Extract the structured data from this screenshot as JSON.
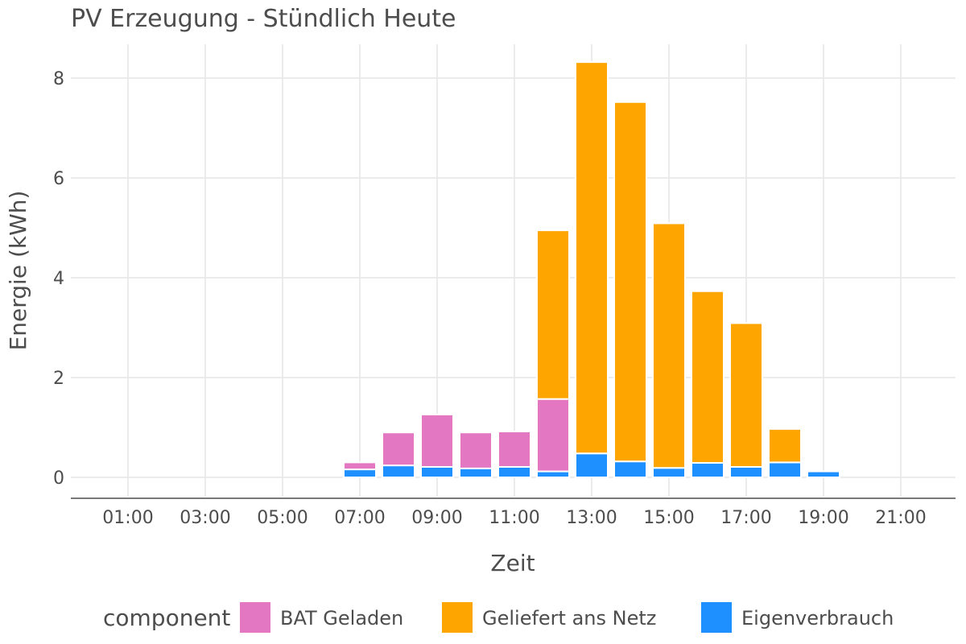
{
  "chart_data": {
    "type": "bar",
    "stacked": true,
    "title": "PV Erzeugung - Stündlich Heute",
    "xlabel": "Zeit",
    "ylabel": "Energie (kWh)",
    "ylim": [
      -0.4,
      8.8
    ],
    "yticks": [
      "0",
      "2",
      "4",
      "6",
      "8"
    ],
    "xticks": [
      "01:00",
      "03:00",
      "05:00",
      "07:00",
      "09:00",
      "11:00",
      "13:00",
      "15:00",
      "17:00",
      "19:00",
      "21:00"
    ],
    "grid": true,
    "legend": {
      "title": "component",
      "placement": "bottom"
    },
    "categories": [
      "00:00",
      "01:00",
      "02:00",
      "03:00",
      "04:00",
      "05:00",
      "06:00",
      "07:00",
      "08:00",
      "09:00",
      "10:00",
      "11:00",
      "12:00",
      "13:00",
      "14:00",
      "15:00",
      "16:00",
      "17:00",
      "18:00",
      "19:00",
      "20:00",
      "21:00",
      "22:00"
    ],
    "series": [
      {
        "name": "Eigenverbrauch",
        "color": "#1e90ff",
        "values": [
          0,
          0,
          0,
          0,
          0,
          0,
          0,
          0.16,
          0.24,
          0.21,
          0.18,
          0.21,
          0.12,
          0.48,
          0.32,
          0.19,
          0.29,
          0.21,
          0.3,
          0.12,
          0,
          0,
          0
        ]
      },
      {
        "name": "BAT Geladen",
        "color": "#e377c2",
        "values": [
          0,
          0,
          0,
          0,
          0,
          0,
          0,
          0.14,
          0.66,
          1.05,
          0.72,
          0.71,
          1.45,
          0,
          0,
          0,
          0,
          0,
          0,
          0,
          0,
          0,
          0
        ]
      },
      {
        "name": "Geliefert ans Netz",
        "color": "#ffa500",
        "values": [
          0,
          0,
          0,
          0,
          0,
          0,
          0,
          0,
          0,
          0,
          0,
          0,
          3.38,
          7.84,
          7.2,
          4.9,
          3.44,
          2.88,
          0.67,
          0,
          0,
          0,
          0
        ]
      }
    ]
  }
}
